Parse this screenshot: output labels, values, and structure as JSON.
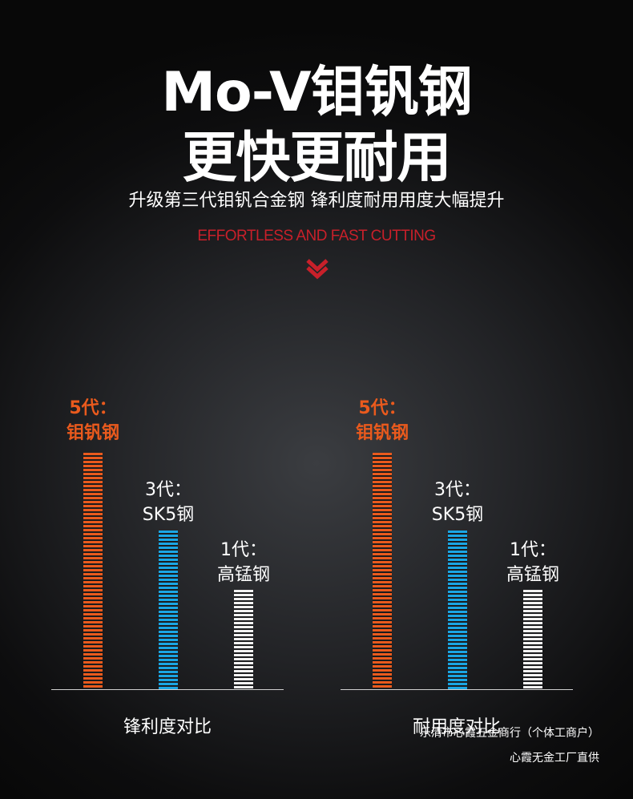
{
  "header": {
    "title_line1": "Mo-V钼钒钢",
    "title_line2": "更快更耐用",
    "subtitle": "升级第三代钼钒合金钢 锋利度耐用用度大幅提升",
    "english_tagline": "EFFORTLESS AND FAST CUTTING",
    "accent_color": "#c8202a",
    "chevron_icon": "double-chevron-down"
  },
  "chart_data": [
    {
      "type": "bar",
      "title": "锋利度对比",
      "categories": [
        "5代：钼钒钢",
        "3代：SK5钢",
        "1代：高锰钢"
      ],
      "values": [
        100,
        67,
        42
      ],
      "bar_colors": [
        "#ea5a1d",
        "#1aa6e4",
        "#f2f2f2"
      ],
      "xlabel": "",
      "ylabel": "",
      "ylim": [
        0,
        100
      ],
      "grid": false
    },
    {
      "type": "bar",
      "title": "耐用度对比",
      "categories": [
        "5代：钼钒钢",
        "3代：SK5钢",
        "1代：高锰钢"
      ],
      "values": [
        100,
        67,
        42
      ],
      "bar_colors": [
        "#ea5a1d",
        "#1aa6e4",
        "#f2f2f2"
      ],
      "xlabel": "",
      "ylabel": "",
      "ylim": [
        0,
        100
      ],
      "grid": false
    }
  ],
  "labels": {
    "gen5_line1": "5代：",
    "gen5_line2": "钼钒钢",
    "gen3_line1": "3代：",
    "gen3_line2": "SK5钢",
    "gen1_line1": "1代：",
    "gen1_line2": "高锰钢"
  },
  "footer": {
    "line1": "乐清市心霞五金商行（个体工商户）",
    "line2": "心霞无金工厂直供"
  }
}
